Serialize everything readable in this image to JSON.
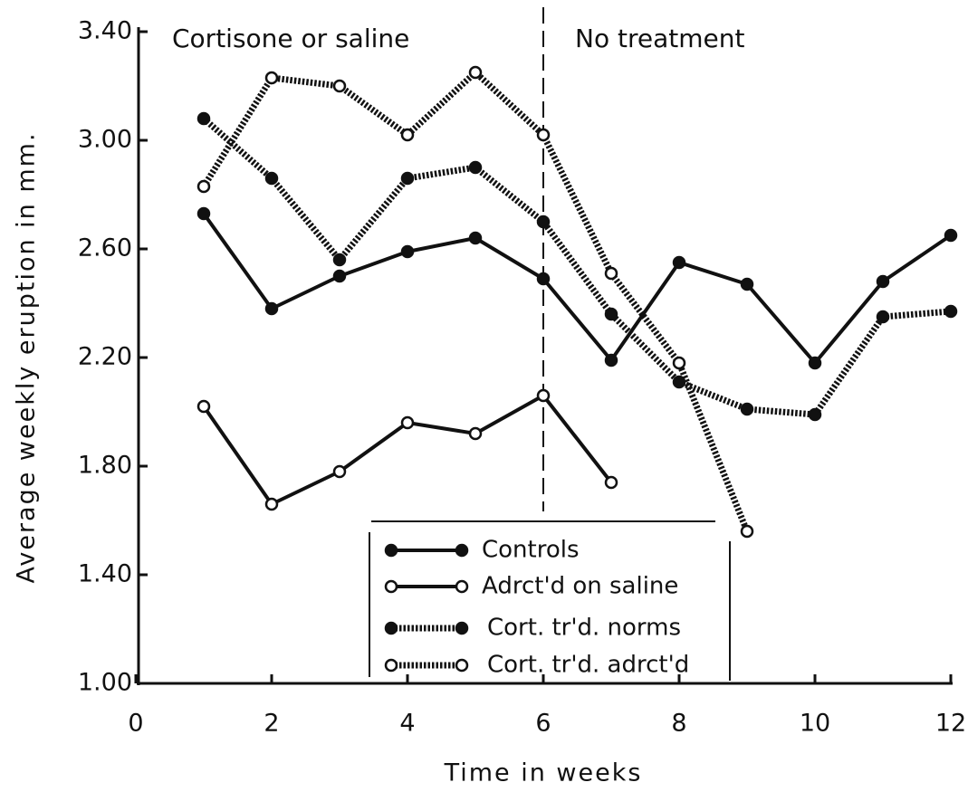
{
  "chart_data": {
    "type": "line",
    "x_label": "Time in weeks",
    "y_label": "Average weekly eruption in mm.",
    "annotations": [
      "Cortisone or saline",
      "No treatment"
    ],
    "x": [
      1,
      2,
      3,
      4,
      5,
      6,
      7,
      8,
      9,
      10,
      11,
      12
    ],
    "series": [
      {
        "name": "Controls",
        "color": "#111111",
        "line_style": "solid",
        "marker": "filled",
        "values": [
          2.73,
          2.38,
          2.5,
          2.59,
          2.64,
          2.49,
          2.19,
          2.55,
          2.47,
          2.18,
          2.48,
          2.65
        ]
      },
      {
        "name": "Adrct'd on saline",
        "color": "#111111",
        "line_style": "solid",
        "marker": "open",
        "values": [
          2.02,
          1.66,
          1.78,
          1.96,
          1.92,
          2.06,
          1.74,
          null,
          null,
          null,
          null,
          null
        ]
      },
      {
        "name": "Cort. tr'd. norms",
        "color": "#111111",
        "line_style": "dotted",
        "marker": "filled",
        "values": [
          3.08,
          2.86,
          2.56,
          2.86,
          2.9,
          2.7,
          2.36,
          2.11,
          2.01,
          1.99,
          2.35,
          2.37
        ]
      },
      {
        "name": "Cort. tr'd. adrct'd",
        "color": "#111111",
        "line_style": "dotted",
        "marker": "open",
        "values": [
          2.83,
          3.23,
          3.2,
          3.02,
          3.25,
          3.02,
          2.51,
          2.18,
          1.56,
          null,
          null,
          null
        ]
      }
    ],
    "xlim": [
      0,
      12
    ],
    "xticks": [
      0,
      2,
      4,
      6,
      8,
      10,
      12
    ],
    "ylim": [
      1.0,
      3.4
    ],
    "yticks": [
      {
        "value": 1.0,
        "label": "1.00"
      },
      {
        "value": 1.4,
        "label": "1.40"
      },
      {
        "value": 1.8,
        "label": "1.80"
      },
      {
        "value": 2.2,
        "label": "2.20"
      },
      {
        "value": 2.6,
        "label": "2.60"
      },
      {
        "value": 3.0,
        "label": "3.00"
      },
      {
        "value": 3.4,
        "label": "3.40"
      }
    ],
    "grid": false,
    "legend": "bottom-center"
  }
}
